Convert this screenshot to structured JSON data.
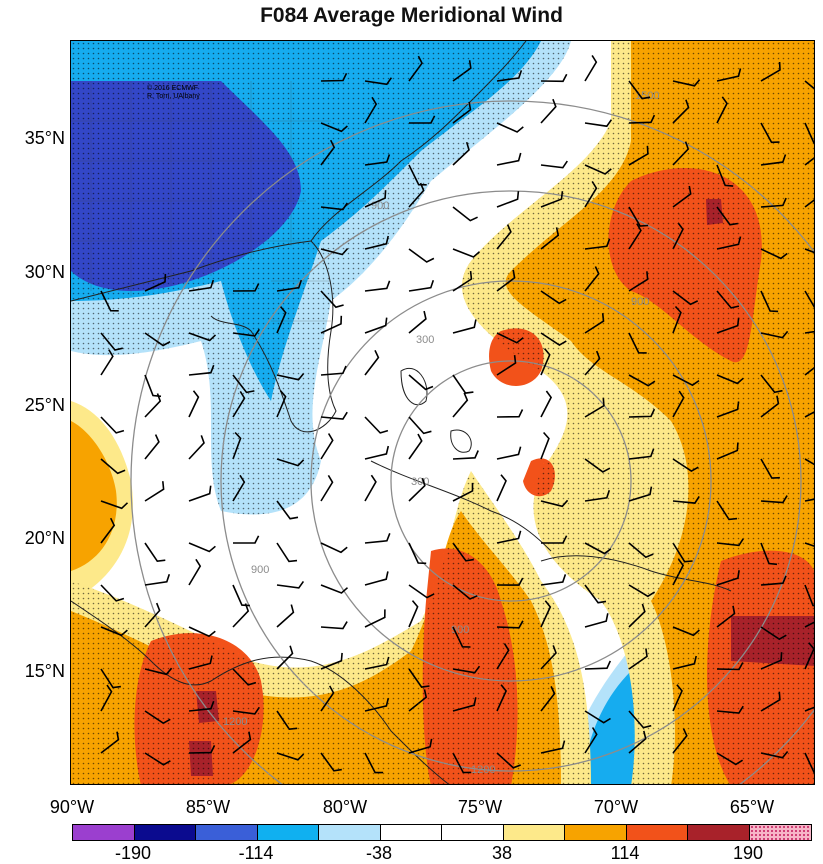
{
  "title": "F084 Average Meridional Wind",
  "credit": {
    "line1": "© 2016 ECMWF",
    "line2": "R. Torn, UAlbany"
  },
  "lat_labels": [
    "35°N",
    "30°N",
    "25°N",
    "20°N",
    "15°N"
  ],
  "lon_labels": [
    "90°W",
    "85°W",
    "80°W",
    "75°W",
    "70°W",
    "65°W"
  ],
  "contour_labels": [
    "300",
    "600",
    "900",
    "1200",
    "1500"
  ],
  "colorbar": {
    "labels": [
      "-190",
      "-114",
      "-38",
      "38",
      "114",
      "190"
    ],
    "colors": [
      "#9b3fcf",
      "#0b0b8f",
      "#3a5fd8",
      "#10b0f0",
      "#b4e2fa",
      "#ffffff",
      "#ffffff",
      "#fde98a",
      "#f7a300",
      "#f2521a",
      "#a8222a",
      "#f7b5c8"
    ]
  },
  "palette": {
    "strong_neg": "#3347c8",
    "mid_neg": "#16acef",
    "weak_neg": "#b4e2fa",
    "weak_pos": "#fde98a",
    "mid_pos": "#f7a300",
    "strong_pos": "#f2521a",
    "extreme_pos": "#a8222a"
  }
}
